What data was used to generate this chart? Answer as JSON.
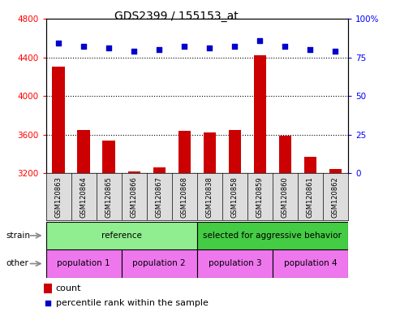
{
  "title": "GDS2399 / 155153_at",
  "samples": [
    "GSM120863",
    "GSM120864",
    "GSM120865",
    "GSM120866",
    "GSM120867",
    "GSM120868",
    "GSM120838",
    "GSM120858",
    "GSM120859",
    "GSM120860",
    "GSM120861",
    "GSM120862"
  ],
  "counts": [
    4300,
    3650,
    3540,
    3215,
    3260,
    3640,
    3620,
    3650,
    4420,
    3590,
    3370,
    3240
  ],
  "percentiles": [
    84,
    82,
    81,
    79,
    80,
    82,
    81,
    82,
    86,
    82,
    80,
    79
  ],
  "ylim_left": [
    3200,
    4800
  ],
  "ylim_right": [
    0,
    100
  ],
  "yticks_left": [
    3200,
    3600,
    4000,
    4400,
    4800
  ],
  "yticks_right": [
    0,
    25,
    50,
    75,
    100
  ],
  "ytick_right_labels": [
    "0",
    "25",
    "50",
    "75",
    "100%"
  ],
  "bar_color": "#CC0000",
  "dot_color": "#0000CC",
  "strain_labels": [
    {
      "text": "reference",
      "start": 0,
      "end": 6,
      "color": "#90EE90"
    },
    {
      "text": "selected for aggressive behavior",
      "start": 6,
      "end": 12,
      "color": "#44CC44"
    }
  ],
  "other_labels": [
    {
      "text": "population 1",
      "start": 0,
      "end": 3,
      "color": "#EE77EE"
    },
    {
      "text": "population 2",
      "start": 3,
      "end": 6,
      "color": "#EE77EE"
    },
    {
      "text": "population 3",
      "start": 6,
      "end": 9,
      "color": "#EE77EE"
    },
    {
      "text": "population 4",
      "start": 9,
      "end": 12,
      "color": "#EE77EE"
    }
  ],
  "legend_count_color": "#CC0000",
  "legend_dot_color": "#0000CC",
  "background_color": "#ffffff",
  "label_area_bg": "#DDDDDD",
  "bar_width": 0.5,
  "ymin": 3200,
  "dot_percentile_scale_min": 0,
  "dot_percentile_scale_max": 100
}
